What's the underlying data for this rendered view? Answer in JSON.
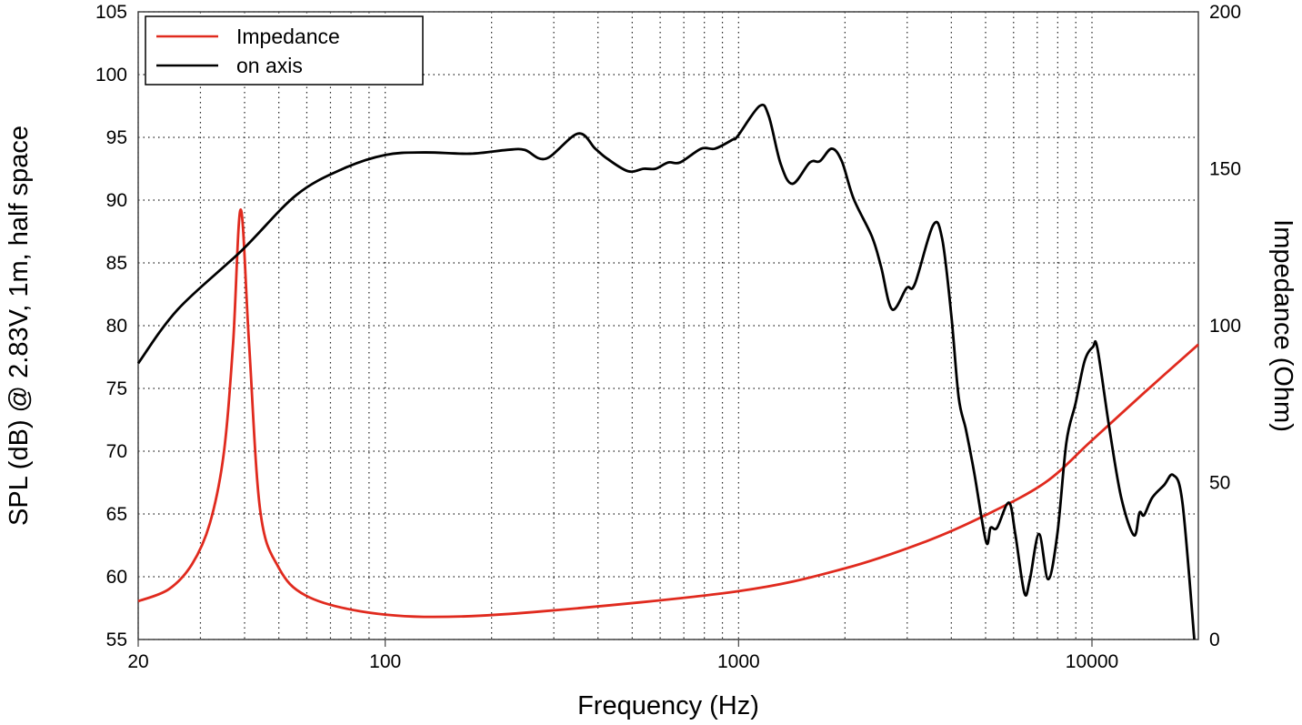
{
  "chart_data": {
    "type": "line",
    "xlabel": "Frequency (Hz)",
    "ylabel": "SPL (dB) @ 2.83V, 1m, half space",
    "y2label": "Impedance (Ohm)",
    "xscale": "log",
    "xlim": [
      20,
      20000
    ],
    "ylim": [
      55,
      105
    ],
    "y2lim": [
      0,
      200
    ],
    "x_ticks": [
      "20",
      "100",
      "1000",
      "10000"
    ],
    "y_ticks": [
      "55",
      "60",
      "65",
      "70",
      "75",
      "80",
      "85",
      "90",
      "95",
      "100",
      "105"
    ],
    "y2_ticks": [
      "0",
      "50",
      "100",
      "150",
      "200"
    ],
    "grid": true,
    "legend_position": "top-left",
    "series": [
      {
        "name": "Impedance",
        "axis": "right",
        "color": "#e02a1e",
        "points": [
          [
            20,
            12.2
          ],
          [
            24.4,
            16
          ],
          [
            28.4,
            24
          ],
          [
            31.9,
            37
          ],
          [
            34.9,
            59
          ],
          [
            37.1,
            94
          ],
          [
            39.0,
            137
          ],
          [
            41.2,
            94
          ],
          [
            44.3,
            41
          ],
          [
            49.9,
            23
          ],
          [
            59.6,
            14
          ],
          [
            85,
            9
          ],
          [
            137,
            7.2
          ],
          [
            280,
            9
          ],
          [
            1000,
            15.4
          ],
          [
            1990,
            22.6
          ],
          [
            3400,
            31.3
          ],
          [
            5015,
            39.7
          ],
          [
            7370,
            50
          ],
          [
            9900,
            63
          ],
          [
            14170,
            79
          ],
          [
            20000,
            94
          ]
        ]
      },
      {
        "name": "on axis",
        "axis": "left",
        "color": "#000000",
        "points": [
          [
            20,
            77.0
          ],
          [
            25.9,
            81.3
          ],
          [
            39.3,
            86.0
          ],
          [
            56,
            90.4
          ],
          [
            76,
            92.5
          ],
          [
            100,
            93.6
          ],
          [
            129,
            93.8
          ],
          [
            174,
            93.7
          ],
          [
            221,
            94.0
          ],
          [
            248,
            94.0
          ],
          [
            285,
            93.3
          ],
          [
            351,
            95.3
          ],
          [
            393,
            94.1
          ],
          [
            425,
            93.3
          ],
          [
            487,
            92.3
          ],
          [
            539,
            92.5
          ],
          [
            582,
            92.5
          ],
          [
            632,
            93.0
          ],
          [
            683,
            93.0
          ],
          [
            784,
            94.1
          ],
          [
            857,
            94.1
          ],
          [
            959,
            94.8
          ],
          [
            994,
            95.1
          ],
          [
            1147,
            97.5
          ],
          [
            1217,
            96.7
          ],
          [
            1315,
            92.9
          ],
          [
            1421,
            91.3
          ],
          [
            1591,
            93.0
          ],
          [
            1698,
            93.1
          ],
          [
            1834,
            94.1
          ],
          [
            1959,
            93.1
          ],
          [
            2117,
            90.1
          ],
          [
            2384,
            87.1
          ],
          [
            2530,
            84.7
          ],
          [
            2718,
            81.3
          ],
          [
            2989,
            83.0
          ],
          [
            3152,
            83.3
          ],
          [
            3552,
            88.0
          ],
          [
            3769,
            86.9
          ],
          [
            4000,
            80.8
          ],
          [
            4195,
            74.3
          ],
          [
            4400,
            71.7
          ],
          [
            4642,
            68.3
          ],
          [
            5015,
            62.8
          ],
          [
            5166,
            63.9
          ],
          [
            5386,
            63.9
          ],
          [
            5820,
            65.9
          ],
          [
            6068,
            63.4
          ],
          [
            6440,
            58.7
          ],
          [
            6674,
            59.8
          ],
          [
            7082,
            63.4
          ],
          [
            7516,
            59.8
          ],
          [
            7980,
            63.4
          ],
          [
            8465,
            70.7
          ],
          [
            8984,
            73.8
          ],
          [
            9535,
            77.2
          ],
          [
            10060,
            78.3
          ],
          [
            10360,
            78.2
          ],
          [
            11190,
            71.9
          ],
          [
            12100,
            66.3
          ],
          [
            13150,
            63.3
          ],
          [
            13630,
            65.1
          ],
          [
            14040,
            64.9
          ],
          [
            14810,
            66.3
          ],
          [
            16000,
            67.3
          ],
          [
            16980,
            68.1
          ],
          [
            18030,
            65.9
          ],
          [
            19480,
            55.0
          ]
        ]
      }
    ]
  }
}
